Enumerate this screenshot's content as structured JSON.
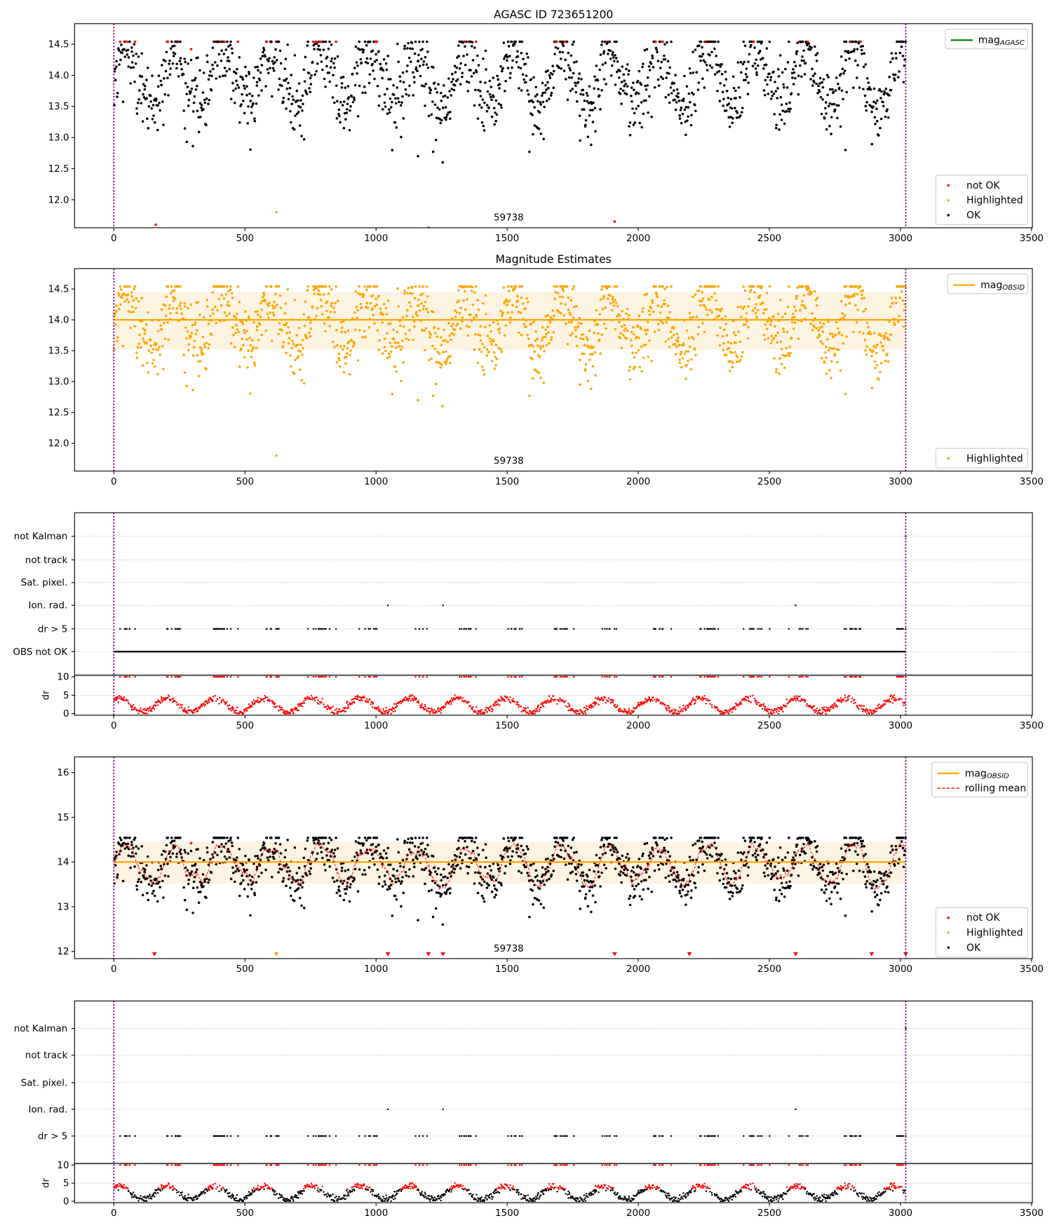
{
  "chart_data": [
    {
      "id": "agasc",
      "type": "scatter",
      "title": "AGASC ID 723651200",
      "xlim": [
        -150,
        3500
      ],
      "ylim": [
        11.55,
        14.83
      ],
      "xticks": [
        "0",
        "500",
        "1000",
        "1500",
        "2000",
        "2500",
        "3000",
        "3500"
      ],
      "yticks": [
        "12.0",
        "12.5",
        "13.0",
        "13.5",
        "14.0",
        "14.5"
      ],
      "vlines": [
        0,
        3020
      ],
      "annotation": "59738",
      "legend_lines": [
        {
          "label": "mag",
          "sub": "AGASC",
          "color": "#008000"
        }
      ],
      "legend_points": [
        {
          "label": "not OK",
          "color": "#ff0000"
        },
        {
          "label": "Highlighted",
          "color": "#ffa500"
        },
        {
          "label": "OK",
          "color": "#000000"
        }
      ]
    },
    {
      "id": "estimates",
      "type": "scatter",
      "title": "Magnitude Estimates",
      "xlim": [
        -150,
        3500
      ],
      "ylim": [
        11.55,
        14.83
      ],
      "xticks": [
        "0",
        "500",
        "1000",
        "1500",
        "2000",
        "2500",
        "3000",
        "3500"
      ],
      "yticks": [
        "12.0",
        "12.5",
        "13.0",
        "13.5",
        "14.0",
        "14.5"
      ],
      "vlines": [
        0,
        3020
      ],
      "annotation": "59738",
      "mag_obsid": 14.0,
      "band": [
        13.52,
        14.45
      ],
      "legend_lines": [
        {
          "label": "mag",
          "sub": "OBSID",
          "color": "#ffa500"
        }
      ],
      "legend_points": [
        {
          "label": "Highlighted",
          "color": "#ffa500"
        }
      ]
    },
    {
      "id": "flags-1",
      "type": "scatter",
      "xlim": [
        -150,
        3500
      ],
      "categories": [
        "not Kalman",
        "not track",
        "Sat. pixel.",
        "Ion. rad.",
        "dr > 5",
        "OBS not OK"
      ],
      "ion_rad_x": [
        1045,
        1255,
        2600
      ],
      "not_kalman_x": [
        3020
      ],
      "dr_ylabel": "dr",
      "dr_yticks": [
        "0",
        "5",
        "10"
      ],
      "xticks": [
        "0",
        "500",
        "1000",
        "1500",
        "2000",
        "2500",
        "3000",
        "3500"
      ],
      "vlines": [
        0,
        3020
      ]
    },
    {
      "id": "mag-rolling",
      "type": "scatter",
      "xlim": [
        -150,
        3500
      ],
      "ylim": [
        11.84,
        16.35
      ],
      "xticks": [
        "0",
        "500",
        "1000",
        "1500",
        "2000",
        "2500",
        "3000",
        "3500"
      ],
      "yticks": [
        "12",
        "13",
        "14",
        "15",
        "16"
      ],
      "vlines": [
        0,
        3020
      ],
      "annotation": "59738",
      "mag_obsid": 14.0,
      "band": [
        13.52,
        14.45
      ],
      "markers_red_x": [
        155,
        1045,
        1200,
        1255,
        1910,
        2195,
        2600,
        2890,
        3020
      ],
      "markers_orange_x": [
        620
      ],
      "legend_lines": [
        {
          "label": "mag",
          "sub": "OBSID",
          "color": "#ffa500"
        },
        {
          "label": "rolling mean",
          "sub": "",
          "color": "#ff0000"
        }
      ],
      "legend_points": [
        {
          "label": "not OK",
          "color": "#ff0000"
        },
        {
          "label": "Highlighted",
          "color": "#ffa500"
        },
        {
          "label": "OK",
          "color": "#000000"
        }
      ]
    },
    {
      "id": "flags-2",
      "type": "scatter",
      "xlim": [
        -150,
        3500
      ],
      "categories": [
        "not Kalman",
        "not track",
        "Sat. pixel.",
        "Ion. rad.",
        "dr > 5"
      ],
      "ion_rad_x": [
        1045,
        1255,
        2600
      ],
      "not_kalman_x": [
        3020
      ],
      "dr_ylabel": "dr",
      "dr_yticks": [
        "0",
        "5",
        "10"
      ],
      "xticks": [
        "0",
        "500",
        "1000",
        "1500",
        "2000",
        "2500",
        "3000",
        "3500"
      ],
      "vlines": [
        0,
        3020
      ]
    }
  ],
  "series_model": {
    "n_points": 1500,
    "x_range": [
      0,
      3020
    ],
    "mag_mean": 13.95,
    "mag_amplitude": 0.45,
    "period_days": 185,
    "mag_ceiling": 14.54,
    "outliers": [
      {
        "x": 160,
        "mag": 11.6,
        "status": "not OK"
      },
      {
        "x": 295,
        "mag": 14.42,
        "status": "not OK"
      },
      {
        "x": 620,
        "mag": 11.8,
        "status": "Highlighted"
      },
      {
        "x": 1160,
        "mag": 12.7,
        "status": "OK"
      },
      {
        "x": 1200,
        "mag": 11.55,
        "status": "not OK"
      },
      {
        "x": 1585,
        "mag": 12.77,
        "status": "OK"
      },
      {
        "x": 1910,
        "mag": 11.65,
        "status": "not OK"
      },
      {
        "x": 2790,
        "mag": 12.8,
        "status": "OK"
      }
    ]
  }
}
